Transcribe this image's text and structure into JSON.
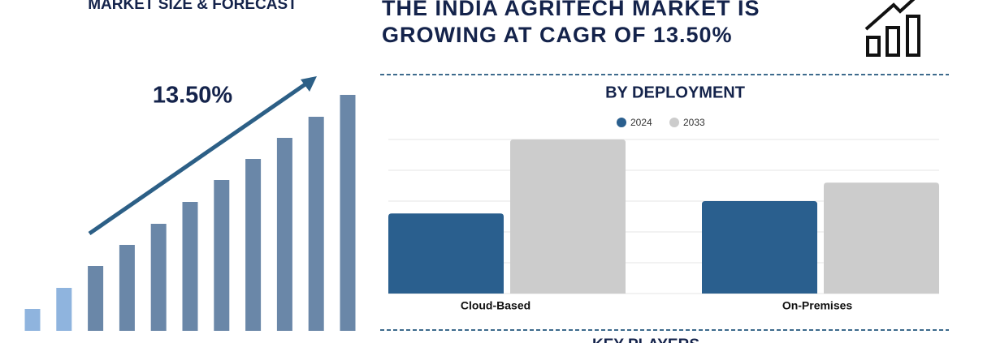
{
  "header": {
    "title_lines": [
      "THE INDIA AGRITECH MARKET IS",
      "GROWING AT CAGR OF 13.50%"
    ]
  },
  "chart_data": [
    {
      "type": "bar",
      "title": "MARKET SIZE & FORECAST",
      "annotation": "13.50%",
      "categories": [
        null,
        null,
        null,
        null,
        null,
        null,
        null,
        null,
        null,
        null,
        null
      ],
      "values": [
        27,
        53,
        80,
        106,
        132,
        159,
        186,
        212,
        238,
        264,
        291
      ],
      "colors": [
        "#8fb4de",
        "#8fb4de",
        "#6a87a8",
        "#6a87a8",
        "#6a87a8",
        "#6a87a8",
        "#6a87a8",
        "#6a87a8",
        "#6a87a8",
        "#6a87a8",
        "#6a87a8"
      ],
      "ylim": [
        0,
        291
      ]
    },
    {
      "type": "grouped_bar",
      "title": "BY DEPLOYMENT",
      "categories": [
        "Cloud-Based",
        "On-Premises"
      ],
      "series": [
        {
          "name": "2024",
          "color": "#2a5f8e",
          "values": [
            2.6,
            3.0
          ]
        },
        {
          "name": "2033",
          "color": "#cccccc",
          "values": [
            5.0,
            3.6
          ]
        }
      ],
      "ylim": [
        0,
        5
      ],
      "yticks": [
        0,
        1,
        2,
        3,
        4,
        5
      ],
      "grid": true
    }
  ],
  "section": {
    "title": "KEY PLAYERS"
  }
}
